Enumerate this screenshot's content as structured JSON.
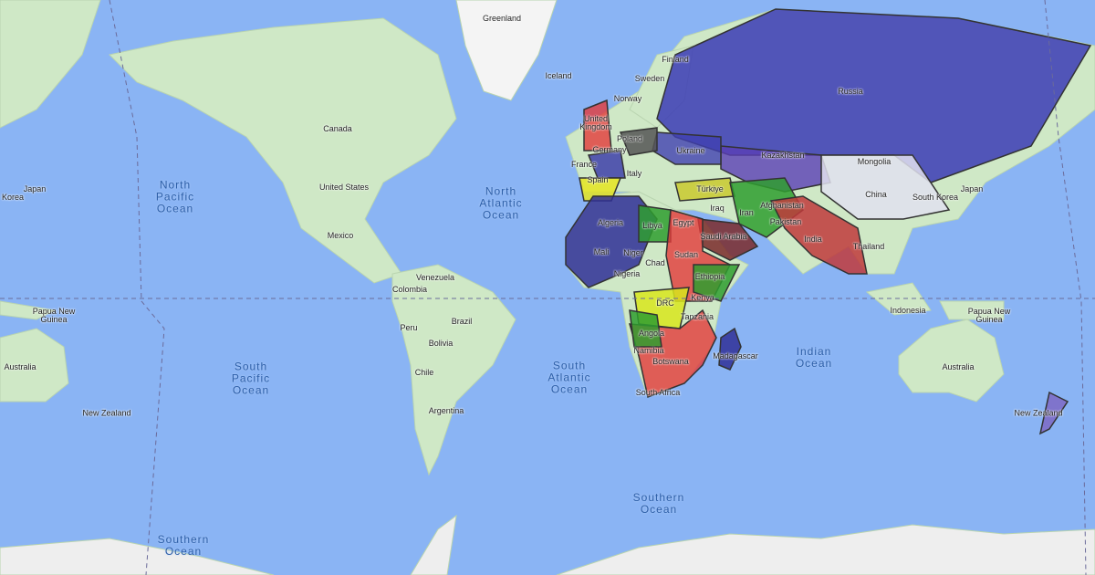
{
  "labels": [
    "Greenland",
    "Iceland",
    "Finland",
    "Sweden",
    "Norway",
    "United Kingdom",
    "Poland",
    "Germany",
    "Ukraine",
    "France",
    "Italy",
    "Spain",
    "Türkiye",
    "Russia",
    "Kazakhstan",
    "Mongolia",
    "China",
    "South Korea",
    "Japan",
    "Korea",
    "Japan",
    "Canada",
    "United States",
    "Mexico",
    "Venezuela",
    "Colombia",
    "Peru",
    "Brazil",
    "Bolivia",
    "Chile",
    "Argentina",
    "Algeria",
    "Libya",
    "Egypt",
    "Mali",
    "Niger",
    "Chad",
    "Sudan",
    "Nigeria",
    "Ethiopia",
    "Kenya",
    "DRC",
    "Tanzania",
    "Angola",
    "Namibia",
    "Botswana",
    "South Africa",
    "Madagascar",
    "Iraq",
    "Iran",
    "Saudi Arabia",
    "Afghanistan",
    "Pakistan",
    "India",
    "Thailand",
    "Indonesia",
    "Papua New Guinea",
    "Papua New Guinea",
    "Australia",
    "Australia",
    "New Zealand",
    "New Zealand"
  ],
  "oceans": [
    "North Pacific Ocean",
    "North Atlantic Ocean",
    "South Pacific Ocean",
    "South Atlantic Ocean",
    "Indian Ocean",
    "Southern Ocean",
    "Southern Ocean"
  ]
}
